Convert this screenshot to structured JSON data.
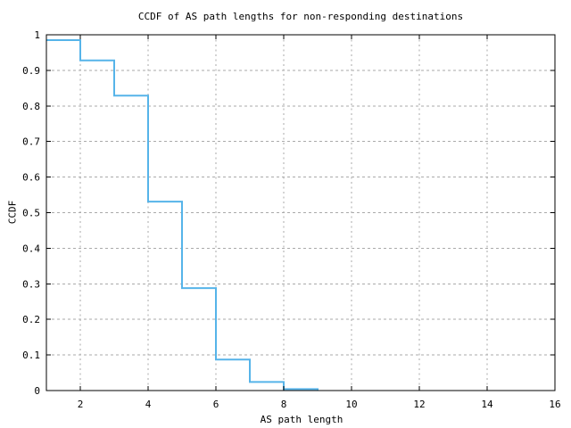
{
  "colors": {
    "line": "#56b4e9",
    "grid": "#aaaaaa",
    "axis": "#000000",
    "text": "#000000",
    "background": "#ffffff"
  },
  "chart_data": {
    "type": "line",
    "line_style": "steps-post",
    "title": "CCDF of AS path lengths for non-responding destinations",
    "xlabel": "AS path length",
    "ylabel": "CCDF",
    "xlim": [
      1,
      16
    ],
    "ylim": [
      0,
      1
    ],
    "grid": true,
    "legend": "none",
    "xticks": {
      "values": [
        2,
        4,
        6,
        8,
        10,
        12,
        14,
        16
      ],
      "labels": [
        "2",
        "4",
        "6",
        "8",
        "10",
        "12",
        "14",
        "16"
      ]
    },
    "yticks": {
      "values": [
        0,
        0.1,
        0.2,
        0.3,
        0.4,
        0.5,
        0.6,
        0.7,
        0.8,
        0.9,
        1
      ],
      "labels": [
        "0",
        "0.1",
        "0.2",
        "0.3",
        "0.4",
        "0.5",
        "0.6",
        "0.7",
        "0.8",
        "0.9",
        "1"
      ]
    },
    "series": [
      {
        "name": "ccdf-of-as-path-length",
        "color": "#56b4e9",
        "x": [
          1,
          2,
          3,
          4,
          5,
          6,
          7,
          8,
          9
        ],
        "y": [
          0.985,
          0.928,
          0.829,
          0.531,
          0.288,
          0.087,
          0.024,
          0.004,
          0
        ]
      }
    ]
  }
}
